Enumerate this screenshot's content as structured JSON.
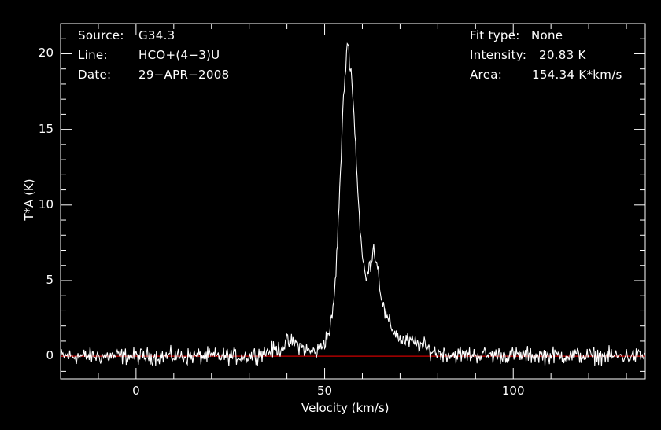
{
  "header": {
    "source_label": "Source:",
    "source_value": "G34.3",
    "line_label": "Line:",
    "line_value": "HCO+(4−3)U",
    "date_label": "Date:",
    "date_value": "29−APR−2008",
    "fit_label": "Fit type:",
    "fit_value": "None",
    "intensity_label": "Intensity:",
    "intensity_value": "20.83 K",
    "area_label": "Area:",
    "area_value": "154.34 K*km/s"
  },
  "chart_data": {
    "type": "line",
    "xlabel": "Velocity (km/s)",
    "ylabel": "T*A (K)",
    "xlim": [
      -20,
      135
    ],
    "ylim": [
      -1.5,
      22
    ],
    "xticks": [
      0,
      50,
      100
    ],
    "yticks": [
      0,
      5,
      10,
      15,
      20
    ],
    "colors": {
      "spectrum": "#ffffff",
      "baseline": "#cc0000",
      "background": "#000000"
    },
    "baseline_y": 0,
    "series": [
      {
        "x": [
          -20,
          30,
          38,
          40,
          42,
          44,
          46,
          48,
          50,
          51,
          52,
          53,
          54,
          55,
          56,
          57,
          58,
          59,
          60,
          61,
          62,
          63,
          64,
          65,
          66,
          67,
          68,
          69,
          70,
          72,
          75,
          78,
          80,
          85,
          135
        ],
        "values": [
          0,
          0,
          0.5,
          0.9,
          0.9,
          0.6,
          0.3,
          0.3,
          1.0,
          1.5,
          2.5,
          5.5,
          11,
          17,
          20.83,
          19,
          15,
          10,
          6.5,
          5.0,
          6.0,
          7.2,
          6.0,
          4.0,
          2.8,
          2.2,
          1.8,
          1.5,
          1.1,
          1.0,
          0.8,
          0.4,
          0.2,
          0.1,
          0
        ]
      }
    ]
  }
}
